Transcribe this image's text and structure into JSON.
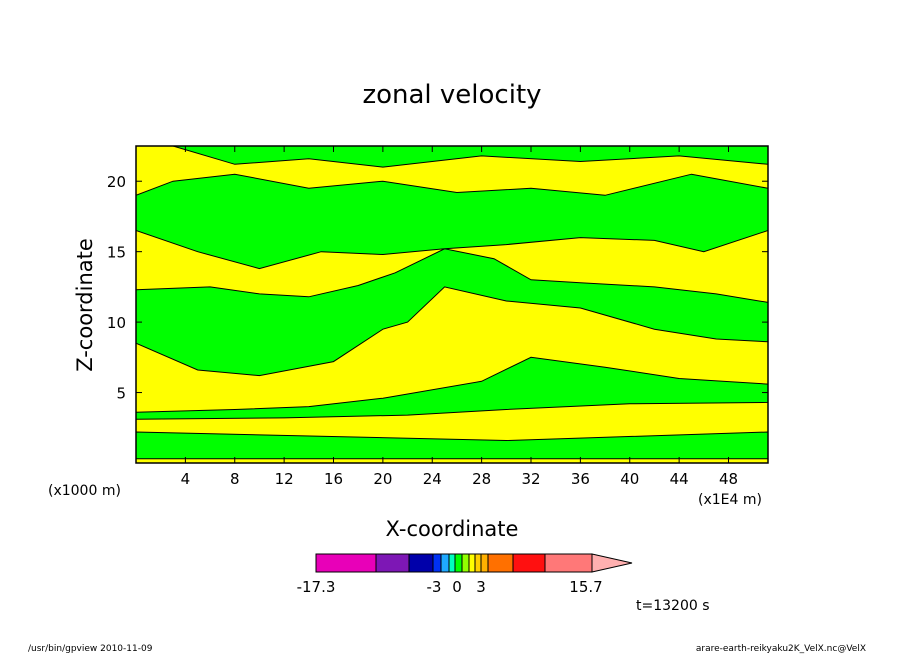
{
  "chart_data": {
    "type": "heatmap",
    "title": "zonal velocity",
    "xlabel": "X-coordinate",
    "ylabel": "Z-coordinate",
    "x_unit_label": "(x1E4 m)",
    "y_unit_label": "(x1000 m)",
    "xlim": [
      0,
      51.2
    ],
    "ylim": [
      0,
      22.5
    ],
    "x_ticks": [
      4,
      8,
      12,
      16,
      20,
      24,
      28,
      32,
      36,
      40,
      44,
      48
    ],
    "x_tick_labels": [
      "4",
      "8",
      "12",
      "16",
      "20",
      "24",
      "28",
      "32",
      "36",
      "40",
      "44",
      "48"
    ],
    "y_ticks": [
      5,
      10,
      15,
      20
    ],
    "y_tick_labels": [
      "5",
      "10",
      "15",
      "20"
    ],
    "dominant_levels": [
      {
        "range": [
          -1,
          0
        ],
        "color": "#00ff00"
      },
      {
        "range": [
          0,
          1
        ],
        "color": "#ffff00"
      }
    ],
    "regions": [
      {
        "level": "green",
        "polygon": [
          [
            0,
            0.3
          ],
          [
            51.2,
            0.3
          ],
          [
            51.2,
            2.2
          ],
          [
            30,
            1.6
          ],
          [
            0,
            2.2
          ]
        ]
      },
      {
        "level": "green",
        "polygon": [
          [
            0,
            3.6
          ],
          [
            8,
            3.8
          ],
          [
            14,
            4.0
          ],
          [
            20,
            4.6
          ],
          [
            28,
            5.8
          ],
          [
            32,
            7.5
          ],
          [
            38,
            6.8
          ],
          [
            44,
            6.0
          ],
          [
            51.2,
            5.6
          ],
          [
            51.2,
            4.3
          ],
          [
            40,
            4.2
          ],
          [
            30,
            3.8
          ],
          [
            22,
            3.4
          ],
          [
            12,
            3.2
          ],
          [
            0,
            3.1
          ]
        ]
      },
      {
        "level": "green",
        "polygon": [
          [
            0,
            8.5
          ],
          [
            5,
            6.6
          ],
          [
            10,
            6.2
          ],
          [
            16,
            7.2
          ],
          [
            20,
            9.5
          ],
          [
            22,
            10.0
          ],
          [
            25,
            12.5
          ],
          [
            30,
            11.5
          ],
          [
            36,
            11.0
          ],
          [
            42,
            9.5
          ],
          [
            47,
            8.8
          ],
          [
            51.2,
            8.6
          ],
          [
            51.2,
            11.4
          ],
          [
            47,
            12.0
          ],
          [
            42,
            12.5
          ],
          [
            36,
            12.8
          ],
          [
            32,
            13.0
          ],
          [
            29,
            14.5
          ],
          [
            25,
            15.2
          ],
          [
            21,
            13.5
          ],
          [
            18,
            12.6
          ],
          [
            14,
            11.8
          ],
          [
            10,
            12.0
          ],
          [
            6,
            12.5
          ],
          [
            0,
            12.3
          ]
        ]
      },
      {
        "level": "green",
        "polygon": [
          [
            0,
            16.5
          ],
          [
            5,
            15.0
          ],
          [
            10,
            13.8
          ],
          [
            15,
            15.0
          ],
          [
            20,
            14.8
          ],
          [
            25,
            15.2
          ],
          [
            30,
            15.5
          ],
          [
            36,
            16.0
          ],
          [
            42,
            15.8
          ],
          [
            46,
            15.0
          ],
          [
            51.2,
            16.5
          ],
          [
            51.2,
            19.5
          ],
          [
            45,
            20.5
          ],
          [
            38,
            19.0
          ],
          [
            32,
            19.5
          ],
          [
            26,
            19.2
          ],
          [
            20,
            20.0
          ],
          [
            14,
            19.5
          ],
          [
            8,
            20.5
          ],
          [
            3,
            20.0
          ],
          [
            0,
            19.0
          ]
        ]
      },
      {
        "level": "green",
        "polygon": [
          [
            3,
            22.5
          ],
          [
            8,
            21.2
          ],
          [
            14,
            21.6
          ],
          [
            20,
            21.0
          ],
          [
            28,
            21.8
          ],
          [
            36,
            21.4
          ],
          [
            44,
            21.8
          ],
          [
            51.2,
            21.2
          ],
          [
            51.2,
            22.5
          ]
        ]
      }
    ],
    "colorbar": {
      "min_label": "-17.3",
      "max_label": "15.7",
      "labels": [
        "-17.3",
        "-3",
        "0",
        "3",
        "15.7"
      ],
      "colors": [
        "#e800b8",
        "#7d17b5",
        "#0000aa",
        "#0031f4",
        "#1fa9ff",
        "#00ffbe",
        "#00ff00",
        "#92ff00",
        "#ffff00",
        "#ffd000",
        "#ffb000",
        "#ff7000",
        "#ff1010",
        "#ff7878",
        "#ffb0b0"
      ],
      "extend": "max"
    },
    "annotation": "t=13200 s"
  },
  "footer": {
    "left": "/usr/bin/gpview   2010-11-09",
    "right": "arare-earth-reikyaku2K_VelX.nc@VelX"
  }
}
